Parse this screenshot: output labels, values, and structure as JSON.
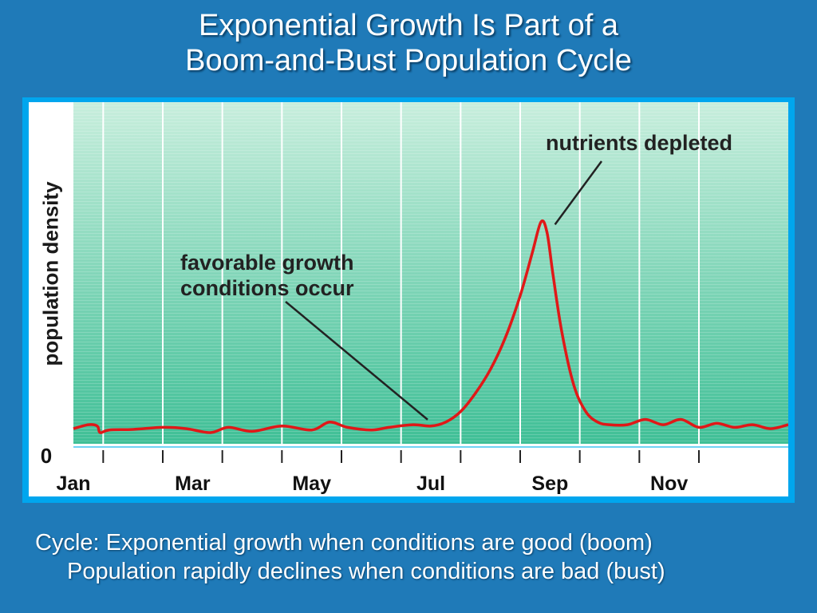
{
  "slide": {
    "title_line1": "Exponential Growth Is Part of a",
    "title_line2": "Boom-and-Bust Population Cycle",
    "bullet_line1": "Cycle: Exponential growth when conditions are good (boom)",
    "bullet_line2": "Population rapidly declines when conditions are bad (bust)"
  },
  "colors": {
    "background": "#1f7ab8",
    "frame": "#00a6ee",
    "plot_top": "#c8eedd",
    "plot_bottom": "#3fbf96",
    "grid": "#ffffff",
    "curve": "#e01818",
    "annotation": "#222222"
  },
  "chart_data": {
    "type": "line",
    "title": "",
    "xlabel": "",
    "ylabel": "population density",
    "y_tick_labels": [
      "0"
    ],
    "x_tick_labels": [
      "Jan",
      "Mar",
      "May",
      "Jul",
      "Sep",
      "Nov"
    ],
    "xlim": [
      0,
      12
    ],
    "ylim": [
      0,
      1
    ],
    "grid": "vertical lines",
    "series": [
      {
        "x": [
          0,
          0.25,
          0.4,
          0.45,
          0.6,
          1.0,
          1.5,
          1.9,
          2.3,
          2.6,
          3.0,
          3.5,
          4.0,
          4.3,
          4.6,
          5.0,
          5.3,
          5.7,
          6.0,
          6.25,
          6.5,
          6.75,
          7.0,
          7.25,
          7.5,
          7.7,
          7.85,
          7.95,
          8.05,
          8.2,
          8.4,
          8.6,
          8.8,
          9.0,
          9.3,
          9.6,
          9.9,
          10.2,
          10.5,
          10.8,
          11.1,
          11.4,
          11.7,
          12.0
        ],
        "y": [
          0.015,
          0.03,
          0.025,
          0.0,
          0.01,
          0.012,
          0.02,
          0.015,
          0.0,
          0.02,
          0.005,
          0.025,
          0.01,
          0.04,
          0.02,
          0.01,
          0.02,
          0.03,
          0.025,
          0.04,
          0.08,
          0.15,
          0.24,
          0.36,
          0.52,
          0.68,
          0.8,
          0.76,
          0.6,
          0.38,
          0.18,
          0.08,
          0.04,
          0.03,
          0.03,
          0.05,
          0.03,
          0.05,
          0.02,
          0.035,
          0.02,
          0.03,
          0.015,
          0.03
        ]
      }
    ],
    "annotations": [
      {
        "lines": [
          "nutrients depleted"
        ],
        "x": 7.95,
        "y": 0.76
      },
      {
        "lines": [
          "favorable growth",
          "conditions occur"
        ],
        "x": 6.0,
        "y": 0.025
      }
    ]
  }
}
